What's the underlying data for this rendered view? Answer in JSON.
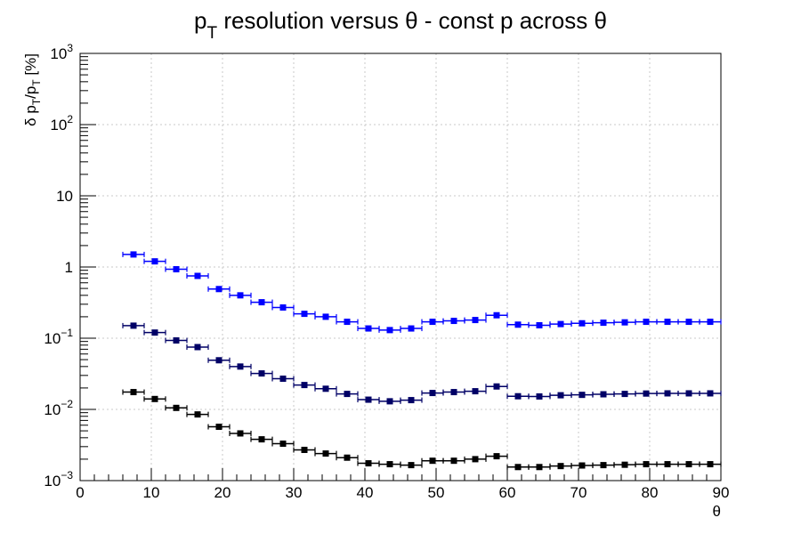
{
  "chart_data": {
    "type": "scatter",
    "title": {
      "main": "p",
      "sub": "T",
      "rest": " resolution versus θ - const p across θ"
    },
    "xlabel": "θ",
    "ylabel": {
      "a": "δ p",
      "b": "T",
      "c": "/p",
      "d": "T",
      "e": " [%]"
    },
    "xlim": [
      0,
      90
    ],
    "ylim": [
      0.001,
      1000
    ],
    "y_scale": "log",
    "grid": true,
    "x_ticks": [
      "0",
      "10",
      "20",
      "30",
      "40",
      "50",
      "60",
      "70",
      "80",
      "90"
    ],
    "y_ticks": [
      {
        "base": "10",
        "exp": "−3",
        "value": 0.001
      },
      {
        "base": "10",
        "exp": "−2",
        "value": 0.01
      },
      {
        "base": "10",
        "exp": "−1",
        "value": 0.1
      },
      {
        "base": "1",
        "exp": "",
        "value": 1
      },
      {
        "base": "10",
        "exp": "",
        "value": 10
      },
      {
        "base": "10",
        "exp": "2",
        "value": 100
      },
      {
        "base": "10",
        "exp": "3",
        "value": 1000
      }
    ],
    "x": [
      7.5,
      10.5,
      13.5,
      16.5,
      19.5,
      22.5,
      25.5,
      28.5,
      31.5,
      34.5,
      37.5,
      40.5,
      43.5,
      46.5,
      49.5,
      52.5,
      55.5,
      58.5,
      61.5,
      64.5,
      67.5,
      70.5,
      73.5,
      76.5,
      79.5,
      82.5,
      85.5,
      88.5
    ],
    "x_bin_halfwidth": 1.5,
    "series": [
      {
        "color": "#0000ff",
        "values": [
          1.5,
          1.2,
          0.93,
          0.75,
          0.49,
          0.4,
          0.32,
          0.27,
          0.22,
          0.2,
          0.17,
          0.137,
          0.13,
          0.137,
          0.17,
          0.175,
          0.18,
          0.21,
          0.155,
          0.152,
          0.158,
          0.162,
          0.165,
          0.167,
          0.17,
          0.17,
          0.17,
          0.17
        ]
      },
      {
        "color": "#000066",
        "values": [
          0.15,
          0.12,
          0.093,
          0.075,
          0.049,
          0.04,
          0.032,
          0.027,
          0.022,
          0.0195,
          0.0165,
          0.0137,
          0.013,
          0.0135,
          0.017,
          0.0175,
          0.018,
          0.021,
          0.0153,
          0.0152,
          0.0158,
          0.016,
          0.0163,
          0.0165,
          0.0167,
          0.0168,
          0.0168,
          0.0168
        ]
      },
      {
        "color": "#000000",
        "values": [
          0.0175,
          0.014,
          0.0105,
          0.0085,
          0.0057,
          0.0046,
          0.0038,
          0.0033,
          0.0027,
          0.0024,
          0.0021,
          0.00175,
          0.0017,
          0.00165,
          0.0019,
          0.0019,
          0.002,
          0.0022,
          0.00155,
          0.00155,
          0.0016,
          0.00163,
          0.00165,
          0.00167,
          0.0017,
          0.0017,
          0.0017,
          0.0017
        ]
      }
    ]
  }
}
